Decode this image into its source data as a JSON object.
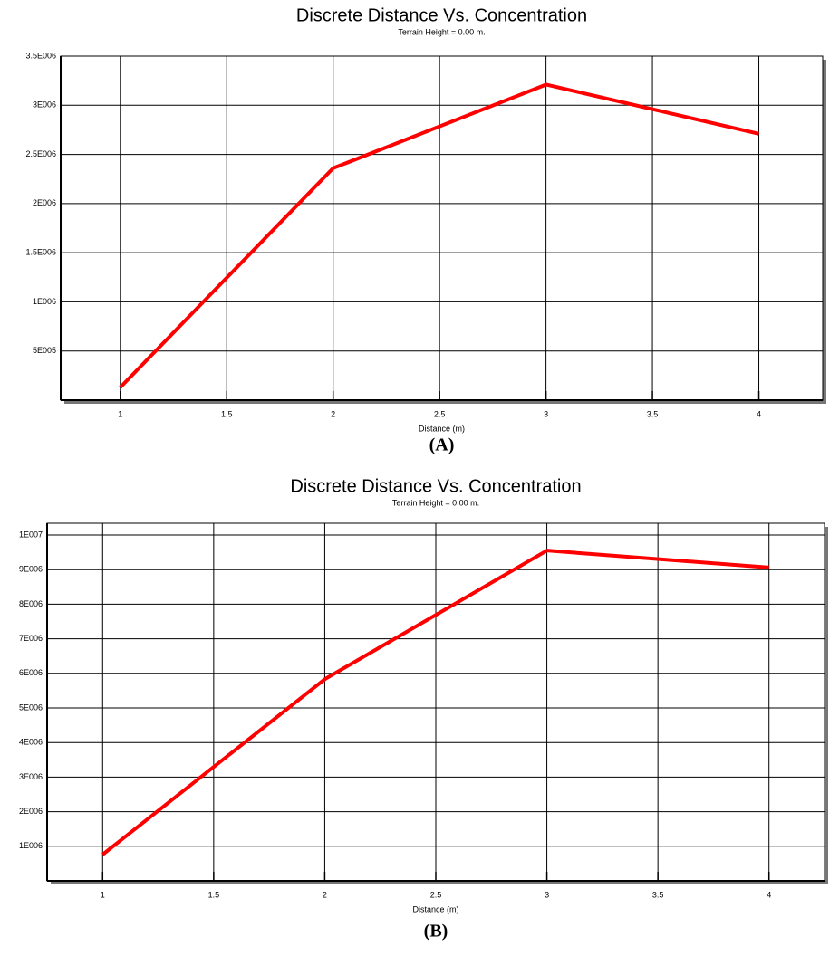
{
  "chart_data": [
    {
      "type": "line",
      "title": "Discrete Distance Vs. Concentration",
      "subtitle": "Terrain Height = 0.00 m.",
      "x_label": "Distance (m)",
      "caption": "(A)",
      "x": [
        1,
        2,
        3,
        4
      ],
      "values": [
        130000,
        2360000,
        3210000,
        2710000
      ],
      "color": "#ff0000",
      "xlim": [
        0.72,
        4.3
      ],
      "xticks": [
        1,
        1.5,
        2,
        2.5,
        3,
        3.5,
        4
      ],
      "ylim": [
        0,
        3500000
      ],
      "yticks": [
        {
          "value": 500000,
          "label": "5E005"
        },
        {
          "value": 1000000,
          "label": "1E006"
        },
        {
          "value": 1500000,
          "label": "1.5E006"
        },
        {
          "value": 2000000,
          "label": "2E006"
        },
        {
          "value": 2500000,
          "label": "2.5E006"
        },
        {
          "value": 3000000,
          "label": "3E006"
        },
        {
          "value": 3500000,
          "label": "3.5E006"
        }
      ],
      "grid": true
    },
    {
      "type": "line",
      "title": "Discrete Distance Vs. Concentration",
      "subtitle": "Terrain Height = 0.00 m.",
      "x_label": "Distance (m)",
      "caption": "(B)",
      "x": [
        1,
        2,
        3,
        4
      ],
      "values": [
        760000,
        5830000,
        9550000,
        9060000
      ],
      "color": "#ff0000",
      "xlim": [
        0.75,
        4.25
      ],
      "xticks": [
        1,
        1.5,
        2,
        2.5,
        3,
        3.5,
        4
      ],
      "ylim": [
        0,
        10340000
      ],
      "yticks": [
        {
          "value": 1000000,
          "label": "1E006"
        },
        {
          "value": 2000000,
          "label": "2E006"
        },
        {
          "value": 3000000,
          "label": "3E006"
        },
        {
          "value": 4000000,
          "label": "4E006"
        },
        {
          "value": 5000000,
          "label": "5E006"
        },
        {
          "value": 6000000,
          "label": "6E006"
        },
        {
          "value": 7000000,
          "label": "7E006"
        },
        {
          "value": 8000000,
          "label": "8E006"
        },
        {
          "value": 9000000,
          "label": "9E006"
        },
        {
          "value": 10000000,
          "label": "1E007"
        }
      ],
      "grid": true
    }
  ]
}
